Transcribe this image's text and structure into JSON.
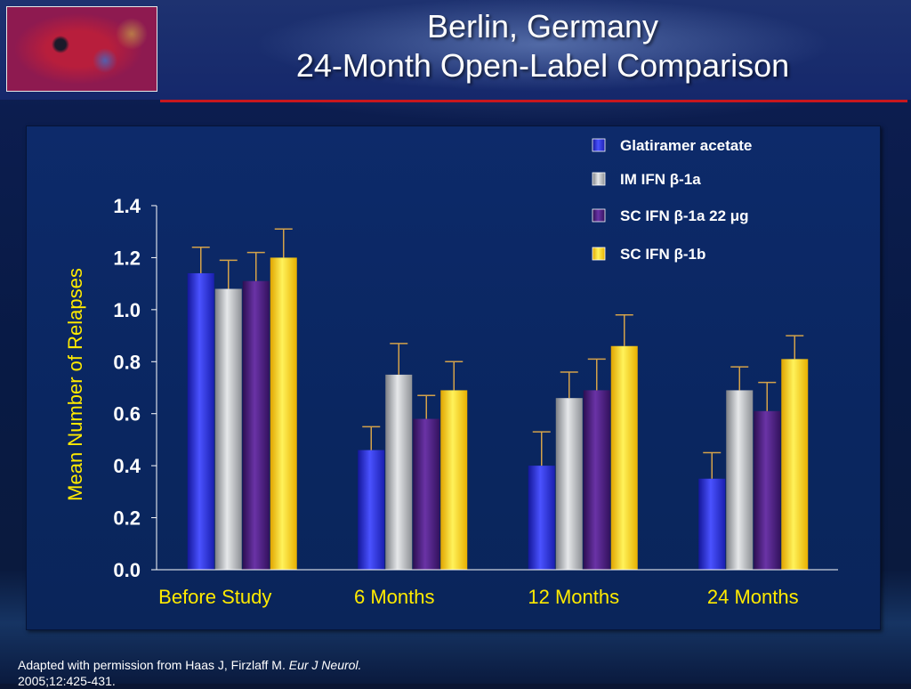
{
  "slide": {
    "title_line1": "Berlin, Germany",
    "title_line2": "24-Month Open-Label Comparison",
    "footer_text": "Adapted with permission from Haas J, Firzlaff M.",
    "footer_journal": "Eur J Neurol.",
    "footer_citation": "2005;12:425-431."
  },
  "chart_data": {
    "type": "bar",
    "title": "",
    "xlabel": "",
    "ylabel": "Mean Number of Relapses",
    "ylim": [
      0,
      1.4
    ],
    "yticks": [
      "0.0",
      "0.2",
      "0.4",
      "0.6",
      "0.8",
      "1.0",
      "1.2",
      "1.4"
    ],
    "ytick_values": [
      0,
      0.2,
      0.4,
      0.6,
      0.8,
      1.0,
      1.2,
      1.4
    ],
    "categories": [
      "Before Study",
      "6 Months",
      "12 Months",
      "24 Months"
    ],
    "grid": false,
    "legend_position": "top-right",
    "series": [
      {
        "name": "Glatiramer acetate",
        "color": "#2a2fd6",
        "values": [
          1.14,
          0.46,
          0.4,
          0.35
        ],
        "errors": [
          0.1,
          0.09,
          0.13,
          0.1
        ]
      },
      {
        "name": "IM IFN β-1a",
        "color": "#b4b6ba",
        "values": [
          1.08,
          0.75,
          0.66,
          0.69
        ],
        "errors": [
          0.11,
          0.12,
          0.1,
          0.09
        ]
      },
      {
        "name": "SC IFN β-1a 22 μg",
        "color": "#4b1e7e",
        "values": [
          1.11,
          0.58,
          0.69,
          0.61
        ],
        "errors": [
          0.11,
          0.09,
          0.12,
          0.11
        ]
      },
      {
        "name": "SC IFN β-1b",
        "color": "#ffd21f",
        "values": [
          1.2,
          0.69,
          0.86,
          0.81
        ],
        "errors": [
          0.11,
          0.11,
          0.12,
          0.09
        ]
      }
    ]
  }
}
